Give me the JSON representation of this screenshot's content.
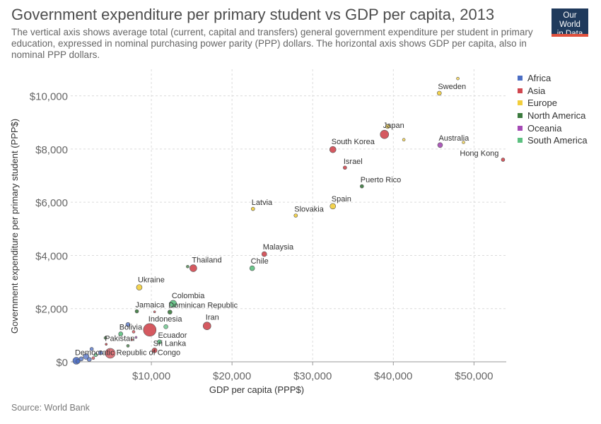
{
  "header": {
    "title": "Government expenditure per primary student vs GDP per capita, 2013",
    "subtitle": "The vertical axis shows average total (current, capital and transfers) general government expenditure per student in primary education, expressed in nominal purchasing power parity (PPP) dollars. The horizontal axis shows GDP per capita, also in nominal PPP dollars.",
    "logo_line1": "Our World",
    "logo_line2": "in Data"
  },
  "footer": {
    "source": "Source: World Bank"
  },
  "colors": {
    "Africa": "#4c6ec4",
    "Asia": "#d0474f",
    "Europe": "#f2ce3c",
    "North America": "#3b7a3e",
    "Oceania": "#a54ab5",
    "South America": "#5cc080",
    "unlabeled": "#8a8a8a"
  },
  "chart_data": {
    "type": "scatter",
    "xlabel": "GDP per capita (PPP$)",
    "ylabel": "Government expenditure per primary student (PPP$)",
    "xlim": [
      0,
      54000
    ],
    "ylim": [
      0,
      11000
    ],
    "x_ticks": [
      10000,
      20000,
      30000,
      40000,
      50000
    ],
    "x_tick_labels": [
      "$10,000",
      "$20,000",
      "$30,000",
      "$40,000",
      "$50,000"
    ],
    "y_ticks": [
      0,
      2000,
      4000,
      6000,
      8000,
      10000
    ],
    "y_tick_labels": [
      "$0",
      "$2,000",
      "$4,000",
      "$6,000",
      "$8,000",
      "$10,000"
    ],
    "grid": true,
    "legend_position": "right",
    "legend": [
      "Africa",
      "Asia",
      "Europe",
      "North America",
      "Oceania",
      "South America"
    ],
    "points": [
      {
        "label": "Sweden",
        "region": "Europe",
        "x": 45700,
        "y": 10100,
        "r": 3
      },
      {
        "label": "",
        "region": "Europe",
        "x": 48000,
        "y": 10650,
        "r": 2
      },
      {
        "label": "Japan",
        "region": "Asia",
        "x": 38900,
        "y": 8550,
        "r": 6
      },
      {
        "label": "",
        "region": "Europe",
        "x": 39300,
        "y": 8850,
        "r": 3
      },
      {
        "label": "",
        "region": "Europe",
        "x": 41300,
        "y": 8350,
        "r": 2
      },
      {
        "label": "Australia",
        "region": "Oceania",
        "x": 45800,
        "y": 8150,
        "r": 3.5
      },
      {
        "label": "",
        "region": "Europe",
        "x": 48700,
        "y": 8250,
        "r": 2
      },
      {
        "label": "Hong Kong",
        "region": "Asia",
        "x": 53600,
        "y": 7600,
        "r": 2.5
      },
      {
        "label": "South Korea",
        "region": "Asia",
        "x": 32500,
        "y": 7980,
        "r": 4.5
      },
      {
        "label": "Israel",
        "region": "Asia",
        "x": 34000,
        "y": 7300,
        "r": 2.5
      },
      {
        "label": "Puerto Rico",
        "region": "North America",
        "x": 36100,
        "y": 6600,
        "r": 2.5
      },
      {
        "label": "Spain",
        "region": "Europe",
        "x": 32500,
        "y": 5850,
        "r": 4
      },
      {
        "label": "Latvia",
        "region": "Europe",
        "x": 22600,
        "y": 5750,
        "r": 2.5
      },
      {
        "label": "Slovakia",
        "region": "Europe",
        "x": 27900,
        "y": 5500,
        "r": 2.5
      },
      {
        "label": "Malaysia",
        "region": "Asia",
        "x": 24000,
        "y": 4050,
        "r": 3.5
      },
      {
        "label": "Chile",
        "region": "South America",
        "x": 22500,
        "y": 3520,
        "r": 3.5
      },
      {
        "label": "Thailand",
        "region": "Asia",
        "x": 15200,
        "y": 3520,
        "r": 5
      },
      {
        "label": "",
        "region": "North America",
        "x": 14500,
        "y": 3580,
        "r": 2
      },
      {
        "label": "Ukraine",
        "region": "Europe",
        "x": 8500,
        "y": 2800,
        "r": 4
      },
      {
        "label": "Colombia",
        "region": "South America",
        "x": 12700,
        "y": 2180,
        "r": 5
      },
      {
        "label": "Dominican Republic",
        "region": "North America",
        "x": 12300,
        "y": 1870,
        "r": 3
      },
      {
        "label": "Jamaica",
        "region": "North America",
        "x": 8200,
        "y": 1900,
        "r": 2.5
      },
      {
        "label": "",
        "region": "Asia",
        "x": 10400,
        "y": 1880,
        "r": 1.5
      },
      {
        "label": "Indonesia",
        "region": "Asia",
        "x": 9800,
        "y": 1200,
        "r": 9
      },
      {
        "label": "",
        "region": "South America",
        "x": 11800,
        "y": 1320,
        "r": 3
      },
      {
        "label": "Iran",
        "region": "Asia",
        "x": 16900,
        "y": 1350,
        "r": 5.5
      },
      {
        "label": "Bolivia",
        "region": "South America",
        "x": 6200,
        "y": 1050,
        "r": 3
      },
      {
        "label": "",
        "region": "Africa",
        "x": 7100,
        "y": 1400,
        "r": 3
      },
      {
        "label": "",
        "region": "Asia",
        "x": 7800,
        "y": 1130,
        "r": 2
      },
      {
        "label": "",
        "region": "North America",
        "x": 4300,
        "y": 900,
        "r": 2
      },
      {
        "label": "",
        "region": "Oceania",
        "x": 8100,
        "y": 920,
        "r": 1.5
      },
      {
        "label": "",
        "region": "Asia",
        "x": 7600,
        "y": 830,
        "r": 1.5
      },
      {
        "label": "Ecuador",
        "region": "South America",
        "x": 11000,
        "y": 750,
        "r": 3
      },
      {
        "label": "Pakistan",
        "region": "Asia",
        "x": 4400,
        "y": 660,
        "r": 1.5
      },
      {
        "label": "",
        "region": "North America",
        "x": 7100,
        "y": 600,
        "r": 2
      },
      {
        "label": "Sri Lanka",
        "region": "Asia",
        "x": 10400,
        "y": 430,
        "r": 3.5
      },
      {
        "label": "",
        "region": "Africa",
        "x": 2600,
        "y": 480,
        "r": 2.5
      },
      {
        "label": "",
        "region": "Africa",
        "x": 3700,
        "y": 340,
        "r": 3
      },
      {
        "label": "",
        "region": "South America",
        "x": 3100,
        "y": 260,
        "r": 2.5
      },
      {
        "label": "",
        "region": "Asia",
        "x": 4900,
        "y": 320,
        "r": 7
      },
      {
        "label": "",
        "region": "Africa",
        "x": 1900,
        "y": 200,
        "r": 4
      },
      {
        "label": "",
        "region": "Africa",
        "x": 1300,
        "y": 110,
        "r": 3
      },
      {
        "label": "",
        "region": "Africa",
        "x": 2300,
        "y": 90,
        "r": 3
      },
      {
        "label": "",
        "region": "Asia",
        "x": 2800,
        "y": 140,
        "r": 2
      },
      {
        "label": "Democratic Republic of Congo",
        "region": "Africa",
        "x": 700,
        "y": 40,
        "r": 5
      },
      {
        "label": "",
        "region": "Africa",
        "x": 900,
        "y": 20,
        "r": 3
      }
    ]
  }
}
